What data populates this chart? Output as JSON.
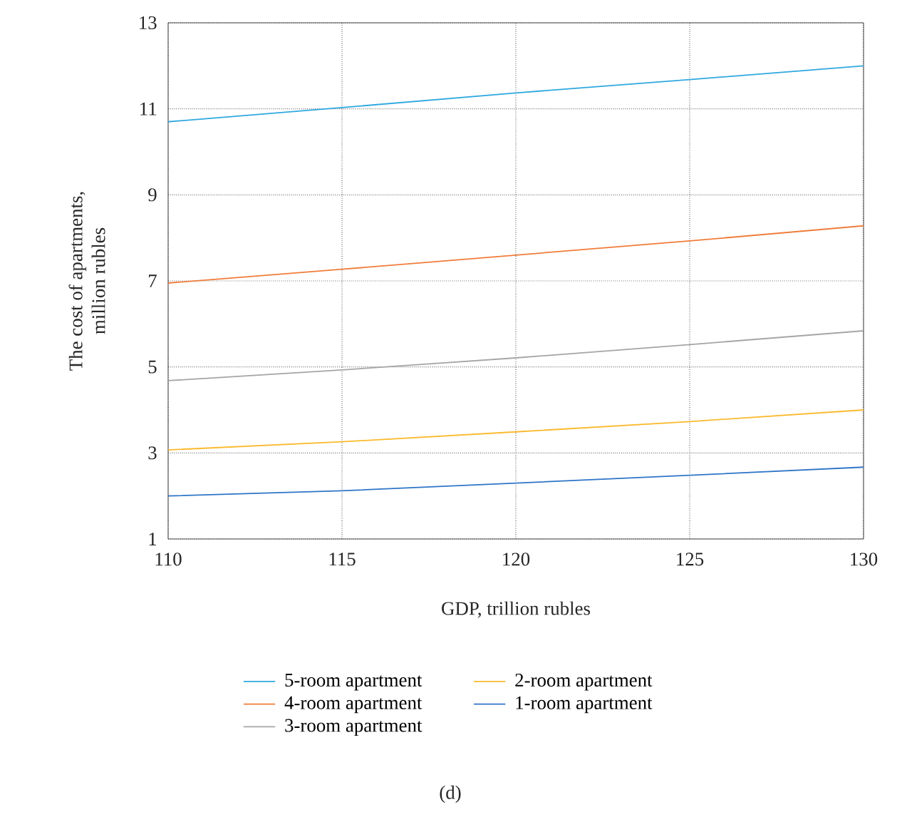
{
  "chart_data": {
    "type": "line",
    "xlabel": "GDP, trillion rubles",
    "ylabel": "The cost of apartments,\nmillion rubles",
    "x": [
      110,
      115,
      120,
      125,
      130
    ],
    "series": [
      {
        "name": "5-room apartment",
        "color": "#2fa8e0",
        "values": [
          10.7,
          11.03,
          11.37,
          11.68,
          12.0
        ]
      },
      {
        "name": "4-room apartment",
        "color": "#f07c3a",
        "values": [
          6.95,
          7.27,
          7.6,
          7.93,
          8.28
        ]
      },
      {
        "name": "3-room apartment",
        "color": "#a5a5a5",
        "values": [
          4.68,
          4.93,
          5.21,
          5.52,
          5.84
        ]
      },
      {
        "name": "2-room apartment",
        "color": "#fbb92d",
        "values": [
          3.07,
          3.26,
          3.49,
          3.73,
          4.0
        ]
      },
      {
        "name": "1-room apartment",
        "color": "#2e75c7",
        "values": [
          2.0,
          2.12,
          2.3,
          2.48,
          2.67
        ]
      }
    ],
    "xlim": [
      110,
      130
    ],
    "xticks": [
      110,
      115,
      120,
      125,
      130
    ],
    "ylim": [
      1,
      13
    ],
    "yticks": [
      1,
      3,
      5,
      7,
      9,
      11,
      13
    ],
    "grid": true,
    "legend": "bottom",
    "marker": "none",
    "line_style": "solid",
    "annotations": [
      "(d)"
    ]
  }
}
